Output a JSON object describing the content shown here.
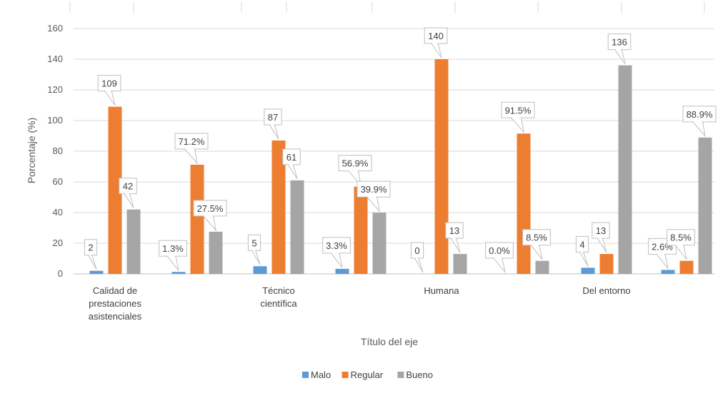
{
  "chart_data": {
    "type": "bar",
    "ylabel": "Porcentaje (%)",
    "xlabel": "Título del eje",
    "ylim": [
      0,
      160
    ],
    "yticks": [
      0,
      20,
      40,
      60,
      80,
      100,
      120,
      140,
      160
    ],
    "grid": true,
    "legend_position": "bottom",
    "categories": [
      "Calidad de prestaciones asistenciales",
      "",
      "Técnico científica",
      "",
      "Humana",
      "",
      "Del entorno",
      ""
    ],
    "series": [
      {
        "name": "Malo",
        "color": "#5B9BD5",
        "values": [
          2,
          1.3,
          5,
          3.3,
          0,
          0.0,
          4,
          2.6
        ],
        "labels": [
          "2",
          "1.3%",
          "5",
          "3.3%",
          "0",
          "0.0%",
          "4",
          "2.6%"
        ]
      },
      {
        "name": "Regular",
        "color": "#ED7D31",
        "values": [
          109,
          71.2,
          87,
          56.9,
          140,
          91.5,
          13,
          8.5
        ],
        "labels": [
          "109",
          "71.2%",
          "87",
          "56.9%",
          "140",
          "91.5%",
          "13",
          "8.5%"
        ]
      },
      {
        "name": "Bueno",
        "color": "#A5A5A5",
        "values": [
          42,
          27.5,
          61,
          39.9,
          13,
          8.5,
          136,
          88.9
        ],
        "labels": [
          "42",
          "27.5%",
          "61",
          "39.9%",
          "13",
          "8.5%",
          "136",
          "88.9%"
        ]
      }
    ]
  }
}
